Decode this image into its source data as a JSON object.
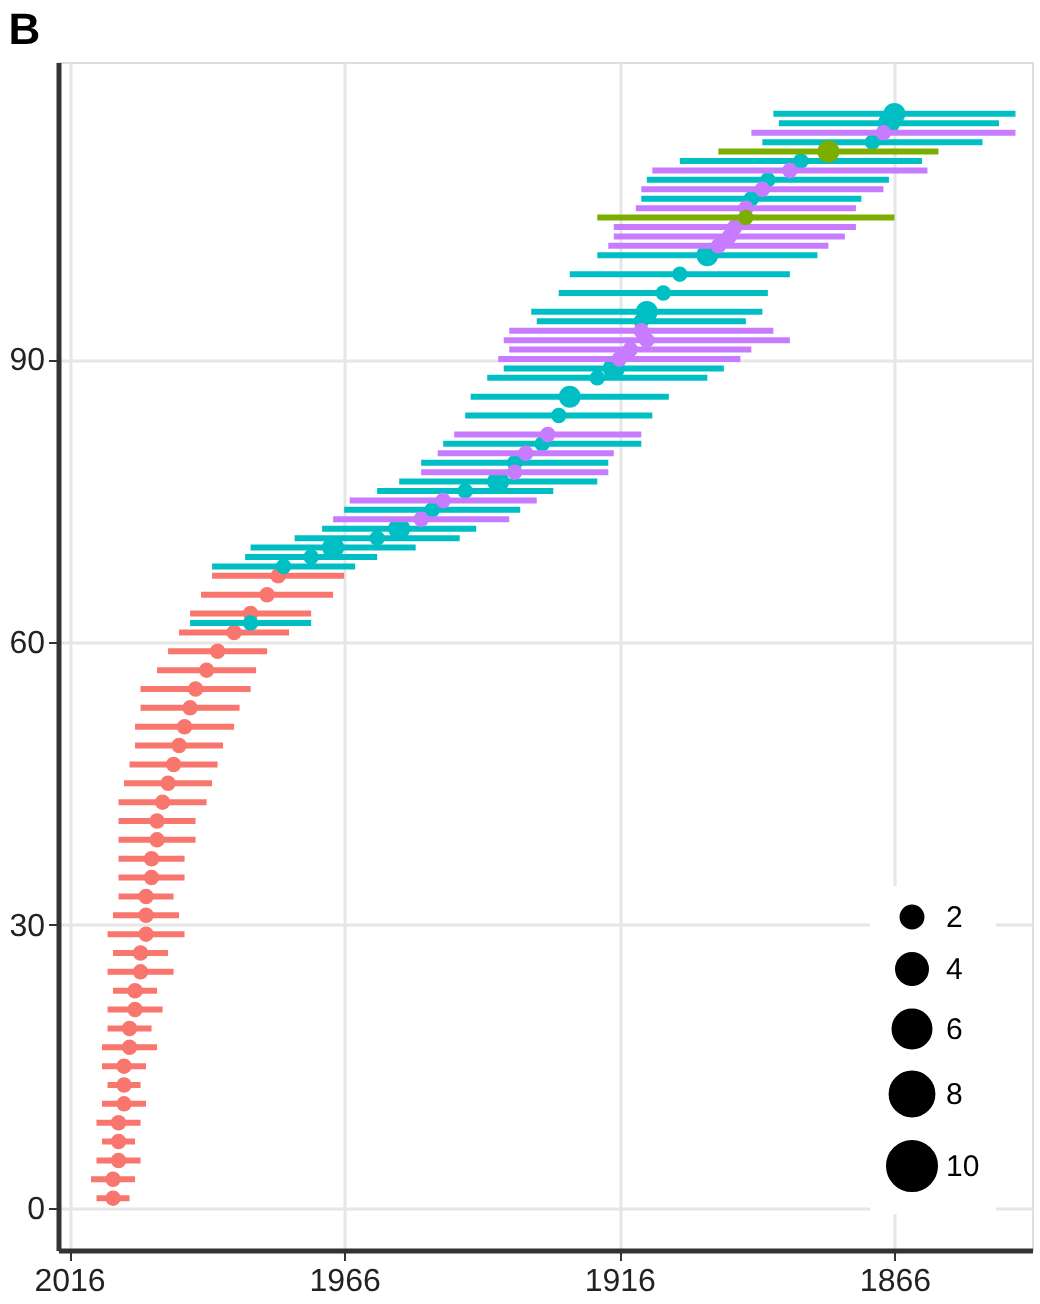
{
  "chart_data": {
    "type": "bubble",
    "title": "B",
    "xlim": [
      2018,
      1841
    ],
    "xticks": [
      2016,
      1966,
      1916,
      1866
    ],
    "ylim": [
      -4.5,
      121.5
    ],
    "yticks": [
      0,
      30,
      60,
      90
    ],
    "grid": true,
    "size_legend": [
      2,
      4,
      6,
      8,
      10
    ],
    "series": [
      {
        "color": "#f8766d",
        "x": [
          2008,
          2008,
          2007,
          2007,
          2007,
          2006,
          2006,
          2006,
          2005,
          2005,
          2004,
          2004,
          2003,
          2003,
          2002,
          2002,
          2002,
          2001,
          2001,
          2000,
          2000,
          1999,
          1998,
          1997,
          1996,
          1995,
          1994,
          1993,
          1991,
          1989,
          1986,
          1983,
          1980,
          1978
        ],
        "values": [
          1,
          3,
          5,
          7,
          9,
          11,
          13,
          15,
          17,
          19,
          21,
          23,
          25,
          27,
          29,
          31,
          33,
          35,
          37,
          39,
          41,
          43,
          45,
          47,
          49,
          51,
          53,
          55,
          57,
          59,
          61,
          63,
          65,
          67
        ],
        "xerrors": [
          3,
          4,
          4,
          3,
          4,
          4,
          3,
          4,
          5,
          4,
          5,
          4,
          6,
          5,
          7,
          6,
          5,
          6,
          6,
          7,
          7,
          8,
          8,
          8,
          8,
          9,
          9,
          10,
          9,
          9,
          10,
          11,
          12,
          12
        ],
        "sizes": [
          1,
          1,
          1,
          1,
          1,
          1,
          1,
          1,
          1,
          1,
          1,
          1,
          1,
          1,
          1,
          1,
          1,
          1,
          1,
          1,
          1,
          1,
          1,
          1,
          1,
          1,
          1,
          1,
          1,
          1,
          1,
          1,
          1,
          1
        ]
      },
      {
        "color": "#00bfc4",
        "x": [
          1983,
          1977,
          1972,
          1968,
          1960,
          1956,
          1950,
          1944,
          1938,
          1935,
          1930,
          1927,
          1925,
          1920,
          1917,
          1912,
          1911,
          1908,
          1905,
          1900,
          1892,
          1889,
          1883,
          1870,
          1867,
          1866
        ],
        "values": [
          62,
          68,
          69,
          70,
          71,
          72,
          74,
          76,
          77,
          79,
          81,
          84,
          86,
          88,
          89,
          94,
          95,
          97,
          99,
          101,
          107,
          109,
          111,
          113,
          115,
          116
        ],
        "xerrors": [
          11,
          13,
          12,
          15,
          15,
          14,
          16,
          16,
          18,
          17,
          18,
          17,
          18,
          20,
          20,
          19,
          21,
          19,
          20,
          20,
          20,
          22,
          22,
          20,
          20,
          22
        ],
        "sizes": [
          1,
          1,
          1,
          2,
          1,
          2,
          1,
          1,
          2,
          1,
          1,
          1,
          2,
          1,
          2,
          1,
          2,
          1,
          1,
          2,
          1,
          1,
          1,
          1,
          2,
          2
        ]
      },
      {
        "color": "#c77cff",
        "x": [
          1952,
          1948,
          1935,
          1933,
          1929,
          1916,
          1914,
          1911,
          1912,
          1898,
          1896,
          1895,
          1893,
          1890,
          1885,
          1868
        ],
        "values": [
          73,
          75,
          78,
          80,
          82,
          90,
          91,
          92,
          93,
          102,
          103,
          104,
          106,
          108,
          110,
          114
        ],
        "xerrors": [
          16,
          17,
          17,
          16,
          17,
          22,
          22,
          26,
          24,
          20,
          21,
          22,
          20,
          22,
          25,
          24
        ],
        "sizes": [
          1,
          1,
          1,
          1,
          1,
          1,
          1,
          1,
          1,
          1,
          1,
          1,
          1,
          1,
          1,
          1
        ]
      },
      {
        "color": "#7cae00",
        "x": [
          1893,
          1878
        ],
        "values": [
          105,
          112
        ],
        "xerrors": [
          27,
          20
        ],
        "sizes": [
          1,
          2
        ]
      }
    ]
  }
}
